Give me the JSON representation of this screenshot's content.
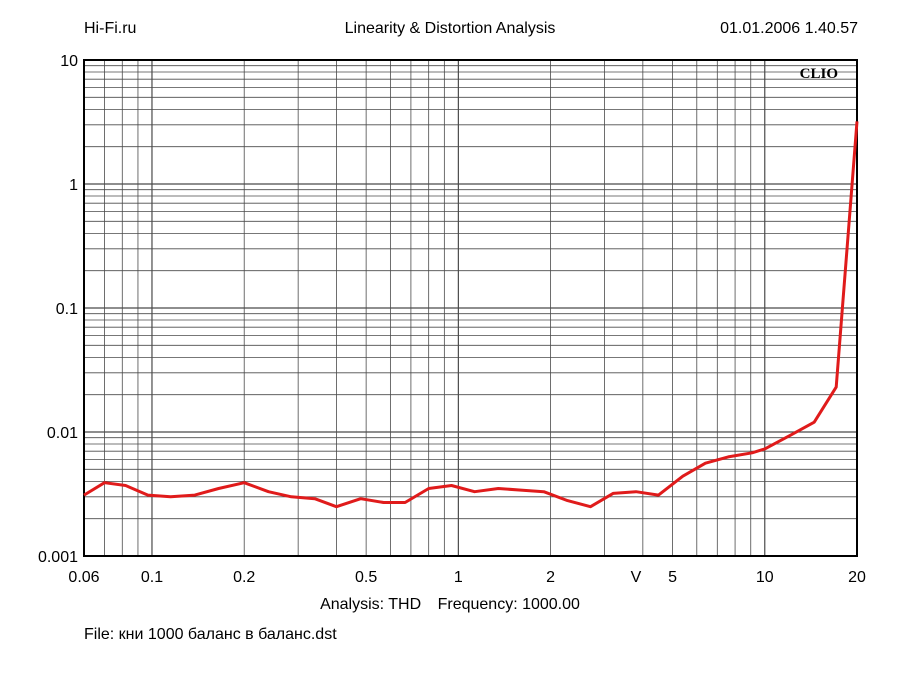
{
  "header": {
    "left": "Hi-Fi.ru",
    "center": "Linearity & Distortion Analysis",
    "right": "01.01.2006 1.40.57"
  },
  "logo_text": "CLIO",
  "footer": {
    "analysis": "Analysis: THD",
    "frequency": "Frequency: 1000.00",
    "file": "File: кни 1000 баланс в баланс.dst"
  },
  "colors": {
    "curve": "#e01b1b",
    "grid": "#4a4a4a",
    "frame": "#000000"
  },
  "chart_data": {
    "type": "line",
    "x_scale": "log",
    "y_scale": "log",
    "xlim": [
      0.06,
      20
    ],
    "ylim": [
      0.001,
      10
    ],
    "grid": true,
    "x_ticks": [
      {
        "value": 0.06,
        "label": "0.06"
      },
      {
        "value": 0.1,
        "label": "0.1"
      },
      {
        "value": 0.2,
        "label": "0.2"
      },
      {
        "value": 0.5,
        "label": "0.5"
      },
      {
        "value": 1,
        "label": "1"
      },
      {
        "value": 2,
        "label": "2"
      },
      {
        "value": 3.8,
        "label": "V"
      },
      {
        "value": 5,
        "label": "5"
      },
      {
        "value": 10,
        "label": "10"
      },
      {
        "value": 20,
        "label": "20"
      }
    ],
    "y_ticks": [
      {
        "value": 10,
        "label": "10"
      },
      {
        "value": 1,
        "label": "1"
      },
      {
        "value": 0.1,
        "label": "0.1"
      },
      {
        "value": 0.01,
        "label": "0.01"
      },
      {
        "value": 0.001,
        "label": "0.001"
      }
    ],
    "series": [
      {
        "x": [
          0.06,
          0.07,
          0.082,
          0.097,
          0.115,
          0.138,
          0.165,
          0.2,
          0.24,
          0.285,
          0.34,
          0.4,
          0.48,
          0.57,
          0.67,
          0.8,
          0.95,
          1.13,
          1.35,
          1.6,
          1.9,
          2.27,
          2.7,
          3.2,
          3.8,
          4.5,
          5.4,
          6.4,
          7.6,
          9.1,
          10.0,
          12.2,
          14.5,
          17.1,
          20
        ],
        "y": [
          0.0031,
          0.0039,
          0.0037,
          0.0031,
          0.003,
          0.0031,
          0.0035,
          0.0039,
          0.0033,
          0.003,
          0.0029,
          0.0025,
          0.0029,
          0.0027,
          0.0027,
          0.0035,
          0.0037,
          0.0033,
          0.0035,
          0.0034,
          0.0033,
          0.0028,
          0.0025,
          0.0032,
          0.0033,
          0.0031,
          0.0044,
          0.0056,
          0.0063,
          0.0068,
          0.0073,
          0.0095,
          0.012,
          0.023,
          3.2
        ]
      }
    ]
  }
}
